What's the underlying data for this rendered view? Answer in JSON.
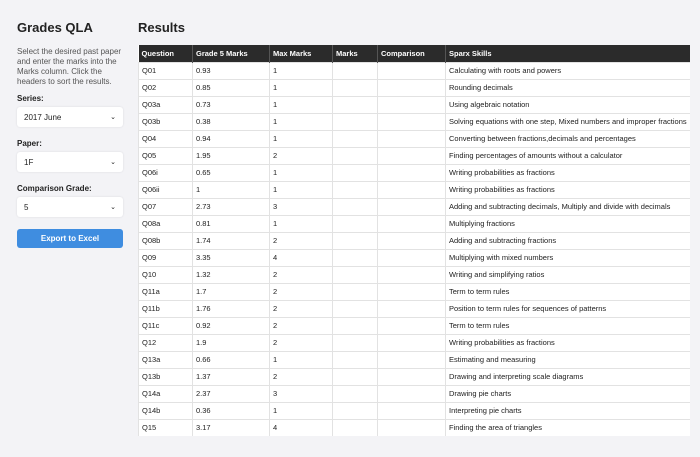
{
  "sidebar": {
    "title": "Grades QLA",
    "description": "Select the desired past paper and enter the marks into the Marks column. Click the headers to sort the results.",
    "series_label": "Series:",
    "series_value": "2017 June",
    "paper_label": "Paper:",
    "paper_value": "1F",
    "grade_label": "Comparison Grade:",
    "grade_value": "5",
    "export_label": "Export to Excel"
  },
  "main": {
    "title": "Results",
    "headers": [
      "Question",
      "Grade 5 Marks",
      "Max Marks",
      "Marks",
      "Comparison",
      "Sparx Skills"
    ],
    "rows": [
      [
        "Q01",
        "0.93",
        "1",
        "",
        "",
        "Calculating with roots and powers"
      ],
      [
        "Q02",
        "0.85",
        "1",
        "",
        "",
        "Rounding decimals"
      ],
      [
        "Q03a",
        "0.73",
        "1",
        "",
        "",
        "Using algebraic notation"
      ],
      [
        "Q03b",
        "0.38",
        "1",
        "",
        "",
        "Solving equations with one step, Mixed numbers and improper fractions"
      ],
      [
        "Q04",
        "0.94",
        "1",
        "",
        "",
        "Converting between fractions,decimals and percentages"
      ],
      [
        "Q05",
        "1.95",
        "2",
        "",
        "",
        "Finding percentages of amounts without a calculator"
      ],
      [
        "Q06i",
        "0.65",
        "1",
        "",
        "",
        "Writing probabilities as fractions"
      ],
      [
        "Q06ii",
        "1",
        "1",
        "",
        "",
        "Writing probabilities as fractions"
      ],
      [
        "Q07",
        "2.73",
        "3",
        "",
        "",
        "Adding and subtracting decimals, Multiply and divide with decimals"
      ],
      [
        "Q08a",
        "0.81",
        "1",
        "",
        "",
        "Multiplying fractions"
      ],
      [
        "Q08b",
        "1.74",
        "2",
        "",
        "",
        "Adding and subtracting fractions"
      ],
      [
        "Q09",
        "3.35",
        "4",
        "",
        "",
        "Multiplying with mixed numbers"
      ],
      [
        "Q10",
        "1.32",
        "2",
        "",
        "",
        "Writing and simplifying ratios"
      ],
      [
        "Q11a",
        "1.7",
        "2",
        "",
        "",
        "Term to term rules"
      ],
      [
        "Q11b",
        "1.76",
        "2",
        "",
        "",
        "Position to term rules for sequences of patterns"
      ],
      [
        "Q11c",
        "0.92",
        "2",
        "",
        "",
        "Term to term rules"
      ],
      [
        "Q12",
        "1.9",
        "2",
        "",
        "",
        "Writing probabilities as fractions"
      ],
      [
        "Q13a",
        "0.66",
        "1",
        "",
        "",
        "Estimating and measuring"
      ],
      [
        "Q13b",
        "1.37",
        "2",
        "",
        "",
        "Drawing and interpreting scale diagrams"
      ],
      [
        "Q14a",
        "2.37",
        "3",
        "",
        "",
        "Drawing pie charts"
      ],
      [
        "Q14b",
        "0.36",
        "1",
        "",
        "",
        "Interpreting pie charts"
      ],
      [
        "Q15",
        "3.17",
        "4",
        "",
        "",
        "Finding the area of triangles"
      ]
    ]
  }
}
